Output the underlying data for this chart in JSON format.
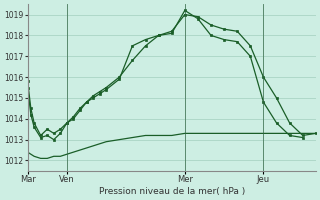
{
  "background_color": "#cdeee3",
  "grid_color": "#aad4c4",
  "line_color": "#1a5e28",
  "marker_color": "#1a5e28",
  "xlabel": "Pression niveau de la mer( hPa )",
  "ylim": [
    1011.5,
    1019.5
  ],
  "yticks": [
    1012,
    1013,
    1014,
    1015,
    1016,
    1017,
    1018,
    1019
  ],
  "xtick_labels": [
    "Mar",
    "Ven",
    "Mer",
    "Jeu"
  ],
  "xtick_positions": [
    0,
    36,
    144,
    216
  ],
  "vline_positions": [
    0,
    36,
    144,
    216
  ],
  "xlim": [
    0,
    264
  ],
  "series1": {
    "x": [
      0,
      3,
      6,
      12,
      18,
      24,
      30,
      36,
      42,
      48,
      54,
      60,
      66,
      72,
      84,
      96,
      108,
      120,
      132,
      144,
      156,
      168,
      180,
      192,
      204,
      216,
      228,
      240,
      252,
      264
    ],
    "y": [
      1015.8,
      1014.5,
      1013.8,
      1013.2,
      1013.5,
      1013.3,
      1013.5,
      1013.8,
      1014.1,
      1014.5,
      1014.8,
      1015.1,
      1015.3,
      1015.5,
      1016.0,
      1016.8,
      1017.5,
      1018.0,
      1018.2,
      1019.0,
      1018.9,
      1018.5,
      1018.3,
      1018.2,
      1017.5,
      1016.0,
      1015.0,
      1013.8,
      1013.2,
      1013.3
    ]
  },
  "series2": {
    "x": [
      0,
      3,
      6,
      12,
      18,
      24,
      30,
      36,
      42,
      48,
      54,
      60,
      66,
      72,
      84,
      96,
      108,
      120,
      132,
      144,
      156,
      168,
      180,
      192,
      204,
      216,
      228,
      240,
      252
    ],
    "y": [
      1015.5,
      1014.2,
      1013.6,
      1013.1,
      1013.2,
      1013.0,
      1013.3,
      1013.8,
      1014.0,
      1014.4,
      1014.8,
      1015.0,
      1015.2,
      1015.4,
      1015.9,
      1017.5,
      1017.8,
      1018.0,
      1018.1,
      1019.2,
      1018.8,
      1018.0,
      1017.8,
      1017.7,
      1017.0,
      1014.8,
      1013.8,
      1013.2,
      1013.1
    ]
  },
  "series3": {
    "x": [
      0,
      6,
      12,
      18,
      24,
      30,
      36,
      42,
      48,
      54,
      60,
      66,
      72,
      84,
      96,
      108,
      120,
      132,
      144,
      156,
      168,
      180,
      192,
      204,
      216,
      228,
      240,
      252,
      264
    ],
    "y": [
      1012.4,
      1012.2,
      1012.1,
      1012.1,
      1012.2,
      1012.2,
      1012.3,
      1012.4,
      1012.5,
      1012.6,
      1012.7,
      1012.8,
      1012.9,
      1013.0,
      1013.1,
      1013.2,
      1013.2,
      1013.2,
      1013.3,
      1013.3,
      1013.3,
      1013.3,
      1013.3,
      1013.3,
      1013.3,
      1013.3,
      1013.3,
      1013.3,
      1013.3
    ]
  }
}
